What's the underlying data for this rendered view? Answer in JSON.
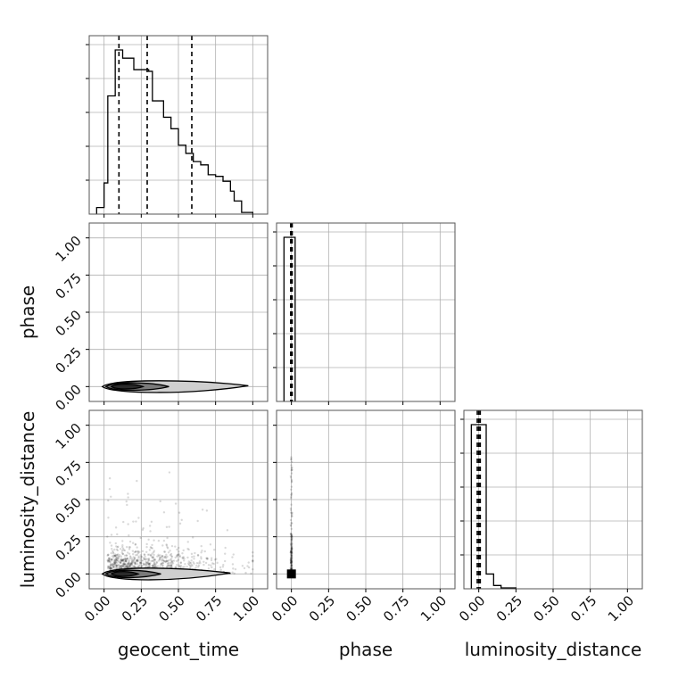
{
  "chart_data": {
    "type": "corner",
    "parameters": [
      "geocent_time",
      "phase",
      "luminosity_distance"
    ],
    "tick_labels": [
      "0.00",
      "0.25",
      "0.50",
      "0.75",
      "1.00"
    ],
    "axis_range": [
      -0.1,
      1.1
    ],
    "grid": true,
    "histograms": [
      {
        "parameter": "geocent_time",
        "bin_edges": [
          -0.05,
          0.0,
          0.025,
          0.075,
          0.125,
          0.2,
          0.3,
          0.325,
          0.4,
          0.45,
          0.5,
          0.55,
          0.6,
          0.65,
          0.7,
          0.75,
          0.8,
          0.85,
          0.875,
          0.925,
          1.0
        ],
        "counts": [
          0.04,
          0.19,
          0.72,
          1.0,
          0.95,
          0.88,
          0.87,
          0.69,
          0.59,
          0.52,
          0.42,
          0.37,
          0.32,
          0.3,
          0.24,
          0.23,
          0.2,
          0.14,
          0.08,
          0.01
        ],
        "quantiles": [
          0.1,
          0.29,
          0.59
        ]
      },
      {
        "parameter": "phase",
        "bin_edges": [
          -0.05,
          0.0,
          0.025
        ],
        "counts": [
          1.0,
          1.0
        ],
        "quantiles": [
          -0.005,
          0.0,
          0.005
        ]
      },
      {
        "parameter": "luminosity_distance",
        "bin_edges": [
          -0.05,
          0.0,
          0.05,
          0.1,
          0.15,
          0.25
        ],
        "counts": [
          1.0,
          1.0,
          0.09,
          0.02,
          0.005
        ],
        "quantiles": [
          -0.01,
          0.0,
          0.01
        ]
      }
    ],
    "scatter_panels": [
      {
        "x": "geocent_time",
        "y": "phase",
        "contour_x_range": [
          0.0,
          0.97
        ],
        "contour_y_center": 0.0
      },
      {
        "x": "geocent_time",
        "y": "luminosity_distance",
        "contour_x_range": [
          0.0,
          0.85
        ],
        "contour_y_center": 0.0,
        "outlier_y_max": 0.8
      },
      {
        "x": "phase",
        "y": "luminosity_distance",
        "contour_x_range": [
          -0.01,
          0.01
        ],
        "contour_y_center": 0.0,
        "outlier_y_max": 0.8
      }
    ]
  }
}
